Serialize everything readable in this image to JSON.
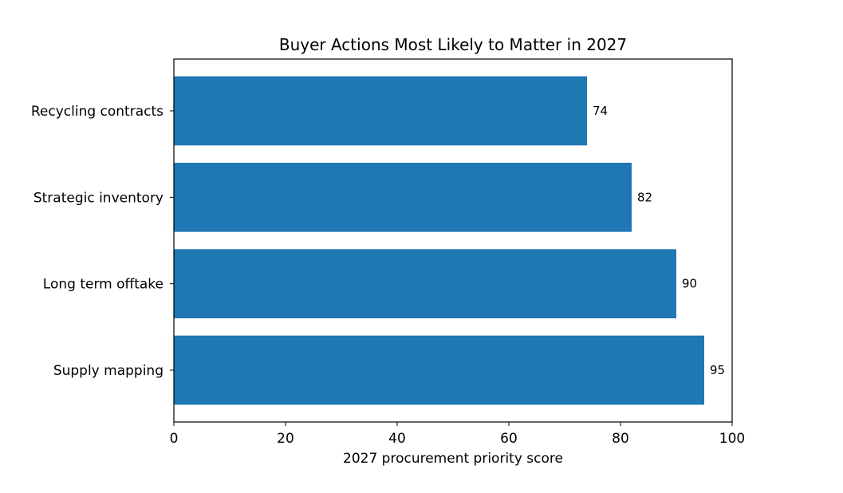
{
  "chart_data": {
    "type": "bar",
    "orientation": "horizontal",
    "title": "Buyer Actions Most Likely to Matter in 2027",
    "xlabel": "2027 procurement priority score",
    "ylabel": "",
    "categories": [
      "Supply mapping",
      "Long term offtake",
      "Strategic inventory",
      "Recycling contracts"
    ],
    "values": [
      95,
      90,
      82,
      74
    ],
    "value_labels": [
      "95",
      "90",
      "82",
      "74"
    ],
    "xlim": [
      0,
      100
    ],
    "xticks": [
      0,
      20,
      40,
      60,
      80,
      100
    ],
    "xtick_labels": [
      "0",
      "20",
      "40",
      "60",
      "80",
      "100"
    ],
    "bar_color": "#1f77b4",
    "grid": false,
    "legend": "none"
  }
}
